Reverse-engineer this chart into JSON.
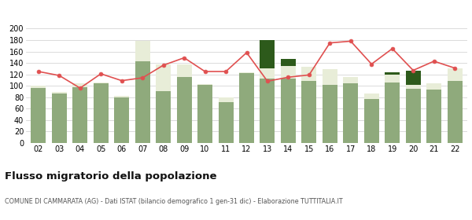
{
  "years": [
    "02",
    "03",
    "04",
    "05",
    "06",
    "07",
    "08",
    "09",
    "10",
    "11",
    "12",
    "13",
    "14",
    "15",
    "16",
    "17",
    "18",
    "19",
    "20",
    "21",
    "22"
  ],
  "iscritti_comuni": [
    96,
    87,
    98,
    104,
    79,
    143,
    91,
    116,
    101,
    72,
    122,
    112,
    113,
    109,
    101,
    105,
    77,
    106,
    95,
    93,
    109
  ],
  "iscritti_estero": [
    4,
    2,
    6,
    2,
    4,
    36,
    46,
    22,
    2,
    8,
    1,
    18,
    22,
    24,
    28,
    11,
    9,
    14,
    7,
    12,
    21
  ],
  "iscritti_altri": [
    0,
    0,
    0,
    0,
    0,
    0,
    0,
    0,
    0,
    0,
    0,
    50,
    12,
    0,
    0,
    0,
    0,
    4,
    24,
    0,
    0
  ],
  "cancellati": [
    125,
    118,
    96,
    121,
    109,
    114,
    136,
    149,
    125,
    125,
    158,
    108,
    115,
    119,
    175,
    178,
    138,
    165,
    127,
    143,
    131
  ],
  "color_comuni": "#8faa7c",
  "color_estero": "#e8edd8",
  "color_altri": "#2d5a1b",
  "color_cancellati": "#e05050",
  "title": "Flusso migratorio della popolazione",
  "subtitle": "COMUNE DI CAMMARATA (AG) - Dati ISTAT (bilancio demografico 1 gen-31 dic) - Elaborazione TUTTITALIA.IT",
  "ylim": [
    0,
    200
  ],
  "yticks": [
    0,
    20,
    40,
    60,
    80,
    100,
    120,
    140,
    160,
    180,
    200
  ],
  "bg_color": "#ffffff",
  "grid_color": "#cccccc"
}
